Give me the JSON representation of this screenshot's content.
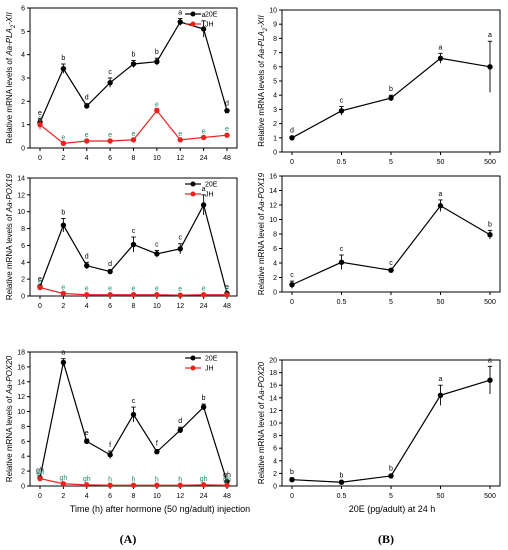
{
  "panel_labels": {
    "A": "(A)",
    "B": "(B)"
  },
  "xlabel_A": "Time (h) after hormone (50 ng/adult) injection",
  "xlabel_B": "20E (pg/adult) at 24 h",
  "colors": {
    "e20": "#000000",
    "jh": "#e8231f",
    "sig_black": "#000000",
    "sig_teal": "#1b8a6b"
  },
  "chart_data": [
    {
      "id": "A1",
      "type": "line",
      "ylabel_parts": [
        "Relative mRNA levels of ",
        "Aa-PLA",
        "2",
        "-XII"
      ],
      "categories": [
        "0",
        "2",
        "4",
        "6",
        "8",
        "10",
        "12",
        "24",
        "48"
      ],
      "ylim": [
        0,
        6
      ],
      "yticks": [
        0,
        1,
        2,
        3,
        4,
        5,
        6
      ],
      "legend": [
        "20E",
        "JH"
      ],
      "series": [
        {
          "name": "20E",
          "color": "#000000",
          "values": [
            1.1,
            3.4,
            1.8,
            2.8,
            3.6,
            3.7,
            5.4,
            5.1,
            1.6
          ],
          "errors": [
            0.15,
            0.2,
            0.1,
            0.2,
            0.15,
            0.15,
            0.15,
            0.35,
            0.05
          ],
          "labels": [
            "e",
            "b",
            "d",
            "c",
            "b",
            "b",
            "a",
            "a",
            "d"
          ]
        },
        {
          "name": "JH",
          "color": "#e8231f",
          "values": [
            1.0,
            0.2,
            0.3,
            0.3,
            0.35,
            1.6,
            0.35,
            0.45,
            0.55
          ],
          "errors": [
            0.2,
            0.05,
            0.05,
            0.05,
            0.05,
            0.1,
            0.05,
            0.05,
            0.05
          ],
          "labels": [
            "e",
            "e",
            "e",
            "e",
            "e",
            "e",
            "e",
            "e",
            "e"
          ]
        }
      ]
    },
    {
      "id": "A2",
      "type": "line",
      "ylabel_parts": [
        "Relative mRNA levels of ",
        "Aa-POX19",
        "",
        ""
      ],
      "categories": [
        "0",
        "2",
        "4",
        "6",
        "8",
        "10",
        "12",
        "24",
        "48"
      ],
      "ylim": [
        0,
        14
      ],
      "yticks": [
        0,
        2,
        4,
        6,
        8,
        10,
        12,
        14
      ],
      "legend": [
        "20E",
        "JH"
      ],
      "series": [
        {
          "name": "20E",
          "color": "#000000",
          "values": [
            1.1,
            8.4,
            3.6,
            2.9,
            6.1,
            5.0,
            5.6,
            10.8,
            0.3
          ],
          "errors": [
            0.2,
            0.8,
            0.4,
            0.2,
            0.9,
            0.4,
            0.6,
            1.2,
            0.05
          ],
          "labels": [
            "e",
            "b",
            "d",
            "d",
            "c",
            "c",
            "c",
            "a",
            "e"
          ]
        },
        {
          "name": "JH",
          "color": "#e8231f",
          "values": [
            1.0,
            0.3,
            0.15,
            0.15,
            0.15,
            0.15,
            0.1,
            0.15,
            0.15
          ],
          "errors": [
            0.2,
            0.05,
            0.05,
            0.05,
            0.05,
            0.05,
            0.05,
            0.05,
            0.05
          ],
          "labels": [
            "e",
            "e",
            "e",
            "e",
            "e",
            "e",
            "e",
            "e",
            "e"
          ]
        }
      ]
    },
    {
      "id": "A3",
      "type": "line",
      "ylabel_parts": [
        "Relative mRNA levels of ",
        "Aa-POX20",
        "",
        ""
      ],
      "categories": [
        "0",
        "2",
        "4",
        "6",
        "8",
        "10",
        "12",
        "24",
        "48"
      ],
      "ylim": [
        0,
        18
      ],
      "yticks": [
        0,
        2,
        4,
        6,
        8,
        10,
        12,
        14,
        16,
        18
      ],
      "legend": [
        "20E",
        "JH"
      ],
      "series": [
        {
          "name": "20E",
          "color": "#000000",
          "values": [
            1.1,
            16.6,
            6.0,
            4.2,
            9.6,
            4.6,
            7.5,
            10.6,
            0.6
          ],
          "errors": [
            0.15,
            0.5,
            0.3,
            0.5,
            1.0,
            0.3,
            0.4,
            0.4,
            0.05
          ],
          "labels": [
            "gh",
            "a",
            "e",
            "f",
            "c",
            "f",
            "d",
            "b",
            "gh"
          ]
        },
        {
          "name": "JH",
          "color": "#e8231f",
          "values": [
            1.0,
            0.3,
            0.15,
            0.1,
            0.1,
            0.1,
            0.1,
            0.15,
            0.1
          ],
          "errors": [
            0.2,
            0.05,
            0.05,
            0.05,
            0.05,
            0.05,
            0.05,
            0.05,
            0.05
          ],
          "labels": [
            "gh",
            "gh",
            "gh",
            "h",
            "h",
            "h",
            "h",
            "gh",
            "gh"
          ]
        }
      ]
    },
    {
      "id": "B1",
      "type": "line",
      "ylabel_parts": [
        "Relative mRNA levels of ",
        "Aa-PLA",
        "2",
        "-XII"
      ],
      "categories": [
        "0",
        "0.5",
        "5",
        "50",
        "500"
      ],
      "ylim": [
        0,
        10
      ],
      "yticks": [
        0,
        1,
        2,
        3,
        4,
        5,
        6,
        7,
        8,
        9,
        10
      ],
      "series": [
        {
          "name": "",
          "color": "#000000",
          "values": [
            1.0,
            2.9,
            3.8,
            6.6,
            6.0
          ],
          "errors": [
            0.1,
            0.3,
            0.2,
            0.35,
            1.8
          ],
          "labels": [
            "d",
            "c",
            "b",
            "a",
            "a"
          ]
        }
      ]
    },
    {
      "id": "B2",
      "type": "line",
      "ylabel_parts": [
        "Relative mRNA level of ",
        "Aa-POX19",
        "",
        ""
      ],
      "categories": [
        "0",
        "0.5",
        "5",
        "50",
        "500"
      ],
      "ylim": [
        0,
        16
      ],
      "yticks": [
        0,
        2,
        4,
        6,
        8,
        10,
        12,
        14,
        16
      ],
      "series": [
        {
          "name": "",
          "color": "#000000",
          "values": [
            1.0,
            4.1,
            3.0,
            11.9,
            7.9
          ],
          "errors": [
            0.5,
            1.0,
            0.2,
            0.8,
            0.6
          ],
          "labels": [
            "c",
            "c",
            "c",
            "a",
            "b"
          ]
        }
      ]
    },
    {
      "id": "B3",
      "type": "line",
      "ylabel_parts": [
        "Relative mRNA level of ",
        "Aa-POX20",
        "",
        ""
      ],
      "categories": [
        "0",
        "0.5",
        "5",
        "50",
        "500"
      ],
      "ylim": [
        0,
        20
      ],
      "yticks": [
        0,
        2,
        4,
        6,
        8,
        10,
        12,
        14,
        16,
        18,
        20
      ],
      "series": [
        {
          "name": "",
          "color": "#000000",
          "values": [
            1.0,
            0.6,
            1.6,
            14.4,
            16.8
          ],
          "errors": [
            0.3,
            0.1,
            0.2,
            1.6,
            2.2
          ],
          "labels": [
            "b",
            "b",
            "b",
            "a",
            "a"
          ]
        }
      ]
    }
  ]
}
